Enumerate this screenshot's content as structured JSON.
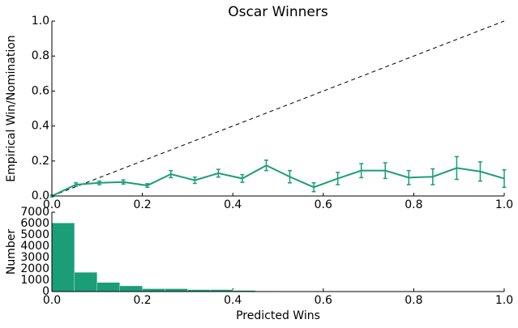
{
  "chart_data": [
    {
      "type": "line",
      "title": "Oscar Winners",
      "ylabel": "Empirical Win/Nomination",
      "x": [
        0.0,
        0.053,
        0.105,
        0.158,
        0.211,
        0.263,
        0.316,
        0.368,
        0.421,
        0.474,
        0.526,
        0.579,
        0.632,
        0.684,
        0.737,
        0.789,
        0.842,
        0.895,
        0.947,
        1.0
      ],
      "series": [
        {
          "color": "#1b9e77",
          "values": [
            0.0,
            0.065,
            0.075,
            0.08,
            0.06,
            0.125,
            0.09,
            0.13,
            0.1,
            0.175,
            0.11,
            0.05,
            0.1,
            0.145,
            0.145,
            0.105,
            0.11,
            0.16,
            0.14,
            0.1
          ],
          "errors": [
            0.005,
            0.01,
            0.01,
            0.012,
            0.01,
            0.02,
            0.018,
            0.022,
            0.022,
            0.03,
            0.035,
            0.025,
            0.035,
            0.04,
            0.045,
            0.04,
            0.045,
            0.065,
            0.055,
            0.05
          ]
        }
      ],
      "diagonal": true,
      "xlim": [
        0,
        1
      ],
      "ylim": [
        0,
        1
      ],
      "xticks": [
        {
          "value": 0,
          "label": "0.0"
        },
        0.2,
        0.4,
        0.6,
        0.8,
        {
          "value": 1,
          "label": "1.0"
        }
      ],
      "yticks": [
        {
          "value": 0,
          "label": "0.0"
        },
        0.2,
        0.4,
        0.6,
        0.8,
        {
          "value": 1,
          "label": "1.0"
        }
      ]
    },
    {
      "type": "histogram",
      "xlabel": "Predicted Wins",
      "ylabel": "Number",
      "color": "#1b9e77",
      "bins": [
        0,
        0.05,
        0.1,
        0.15,
        0.2,
        0.25,
        0.3,
        0.35,
        0.4,
        0.45,
        0.5,
        0.55,
        0.6,
        0.65,
        0.7,
        0.75,
        0.8,
        0.85,
        0.9,
        0.95,
        1.0
      ],
      "counts": [
        6050,
        1700,
        800,
        500,
        250,
        250,
        170,
        170,
        100,
        40,
        30,
        20,
        15,
        10,
        10,
        8,
        5,
        5,
        5,
        5
      ],
      "xlim": [
        0,
        1
      ],
      "ylim": [
        0,
        7000
      ],
      "xticks": [
        {
          "value": 0,
          "label": "0.0"
        },
        0.2,
        0.4,
        0.6,
        0.8,
        {
          "value": 1,
          "label": "1.0"
        }
      ],
      "yticks": [
        0,
        1000,
        2000,
        3000,
        4000,
        5000,
        6000,
        7000
      ]
    }
  ]
}
